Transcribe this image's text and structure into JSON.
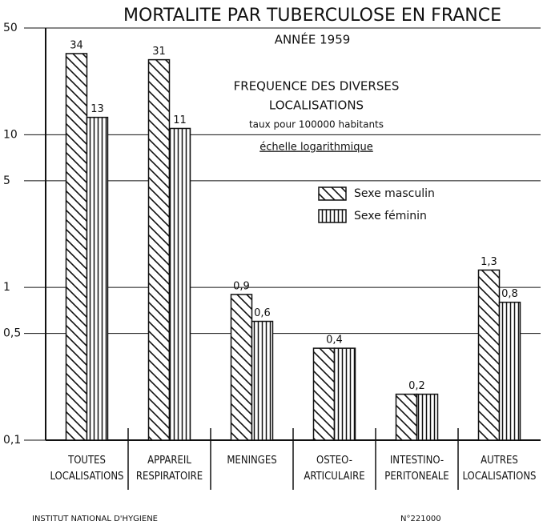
{
  "chart_data": {
    "type": "bar",
    "title": "MORTALITE PAR TUBERCULOSE EN FRANCE",
    "subtitle": "ANNÉE 1959",
    "annotations": [
      "FREQUENCE DES DIVERSES",
      "LOCALISATIONS",
      "taux pour 100000 habitants",
      "échelle logarithmique"
    ],
    "footer": [
      "INSTITUT NATIONAL D'HYGIENE",
      "N°221000"
    ],
    "categories": [
      "TOUTES\nLOCALISATIONS",
      "APPAREIL\nRESPIRATOIRE",
      "MENINGES",
      "OSTEO-\nARTICULAIRE",
      "INTESTINO-\nPERITONEALE",
      "AUTRES\nLOCALISATIONS"
    ],
    "series": [
      {
        "name": "Sexe masculin",
        "color": "#111111",
        "hatch": "diagonal",
        "values": [
          34,
          31,
          0.9,
          0.4,
          0.2,
          1.3
        ],
        "value_labels": [
          "34",
          "31",
          "0,9",
          "0,4",
          "0,2",
          "1,3"
        ]
      },
      {
        "name": "Sexe féminin",
        "color": "#111111",
        "hatch": "vertical",
        "values": [
          13,
          11,
          0.6,
          0.4,
          0.2,
          0.8
        ],
        "value_labels": [
          "13",
          "11",
          "0,6",
          null,
          null,
          "0,8"
        ]
      }
    ],
    "log_scale": true,
    "ylim": [
      0.1,
      50
    ],
    "yticks": [
      {
        "value": 0.1,
        "label": "0,1"
      },
      {
        "value": 0.5,
        "label": "0,5"
      },
      1,
      5,
      10,
      50
    ],
    "grid": true
  }
}
